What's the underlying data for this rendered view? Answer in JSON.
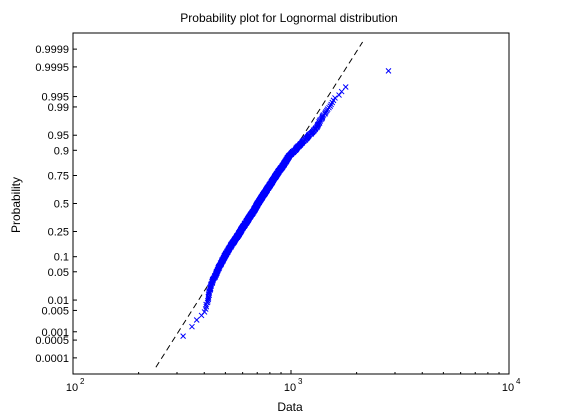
{
  "chart_data": {
    "type": "scatter",
    "title": "Probability plot for Lognormal distribution",
    "xlabel": "Data",
    "ylabel": "Probability",
    "x_scale": "log",
    "y_scale": "normal-probability",
    "xlim": [
      100,
      10000
    ],
    "ylim": [
      2e-05,
      0.99998
    ],
    "grid": false,
    "legend": "none",
    "x_ticks": [
      {
        "value": 100,
        "base": "10",
        "exp": "2"
      },
      {
        "value": 1000,
        "base": "10",
        "exp": "3"
      },
      {
        "value": 10000,
        "base": "10",
        "exp": "4"
      }
    ],
    "y_ticks": [
      {
        "value": 0.0001,
        "label": "0.0001"
      },
      {
        "value": 0.0005,
        "label": "0.0005"
      },
      {
        "value": 0.001,
        "label": "0.001"
      },
      {
        "value": 0.005,
        "label": "0.005"
      },
      {
        "value": 0.01,
        "label": "0.01"
      },
      {
        "value": 0.05,
        "label": "0.05"
      },
      {
        "value": 0.1,
        "label": "0.1"
      },
      {
        "value": 0.25,
        "label": "0.25"
      },
      {
        "value": 0.5,
        "label": "0.5"
      },
      {
        "value": 0.75,
        "label": "0.75"
      },
      {
        "value": 0.9,
        "label": "0.9"
      },
      {
        "value": 0.95,
        "label": "0.95"
      },
      {
        "value": 0.99,
        "label": "0.99"
      },
      {
        "value": 0.995,
        "label": "0.995"
      },
      {
        "value": 0.9995,
        "label": "0.9995"
      },
      {
        "value": 0.9999,
        "label": "0.9999"
      }
    ],
    "series": [
      {
        "marker": "x",
        "color": "#0000ff",
        "sample_size": 1000,
        "x_range": [
          320,
          2800
        ],
        "points": [
          {
            "x": 320,
            "p": 0.0007
          },
          {
            "x": 345,
            "p": 0.0013
          },
          {
            "x": 360,
            "p": 0.0019
          },
          {
            "x": 372,
            "p": 0.0026
          },
          {
            "x": 384,
            "p": 0.0032
          },
          {
            "x": 395,
            "p": 0.0041
          },
          {
            "x": 405,
            "p": 0.0055
          },
          {
            "x": 410,
            "p": 0.0075
          },
          {
            "x": 418,
            "p": 0.012
          },
          {
            "x": 425,
            "p": 0.02
          },
          {
            "x": 435,
            "p": 0.03
          },
          {
            "x": 448,
            "p": 0.04
          },
          {
            "x": 462,
            "p": 0.055
          },
          {
            "x": 478,
            "p": 0.075
          },
          {
            "x": 495,
            "p": 0.1
          },
          {
            "x": 515,
            "p": 0.13
          },
          {
            "x": 540,
            "p": 0.17
          },
          {
            "x": 570,
            "p": 0.22
          },
          {
            "x": 600,
            "p": 0.28
          },
          {
            "x": 635,
            "p": 0.35
          },
          {
            "x": 670,
            "p": 0.42
          },
          {
            "x": 705,
            "p": 0.5
          },
          {
            "x": 740,
            "p": 0.57
          },
          {
            "x": 780,
            "p": 0.64
          },
          {
            "x": 825,
            "p": 0.71
          },
          {
            "x": 870,
            "p": 0.77
          },
          {
            "x": 920,
            "p": 0.82
          },
          {
            "x": 975,
            "p": 0.87
          },
          {
            "x": 1040,
            "p": 0.9
          },
          {
            "x": 1110,
            "p": 0.925
          },
          {
            "x": 1190,
            "p": 0.945
          },
          {
            "x": 1270,
            "p": 0.96
          },
          {
            "x": 1330,
            "p": 0.97
          },
          {
            "x": 1380,
            "p": 0.98
          },
          {
            "x": 1440,
            "p": 0.986
          },
          {
            "x": 1500,
            "p": 0.99
          },
          {
            "x": 1580,
            "p": 0.994
          },
          {
            "x": 1680,
            "p": 0.996
          },
          {
            "x": 1820,
            "p": 0.9978
          },
          {
            "x": 2800,
            "p": 0.9993
          }
        ]
      }
    ],
    "reference_line": {
      "style": "dashed",
      "color": "#000000",
      "points": [
        {
          "x": 240,
          "p": 4e-05
        },
        {
          "x": 2130,
          "p": 0.99995
        }
      ]
    }
  }
}
